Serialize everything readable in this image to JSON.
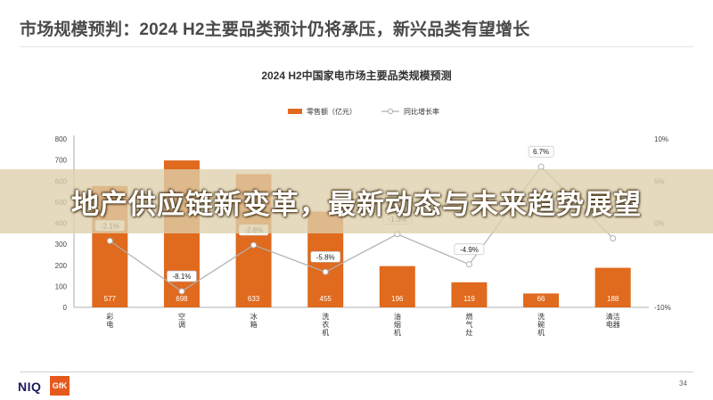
{
  "page_title": "市场规模预判：2024 H2主要品类预计仍将承压，新兴品类有望增长",
  "banner_text": "地产供应链新变革，最新动态与未来趋势展望",
  "footer": {
    "logo_primary": "NIQ",
    "logo_secondary": "GfK",
    "page_number": "34"
  },
  "colors": {
    "bar": "#e06a1e",
    "line": "#b0b0b0",
    "accent": "#e55a1c"
  },
  "chart_data": {
    "type": "bar+line",
    "title": "2024 H2中国家电市场主要品类规模预测",
    "legend": [
      "零售额（亿元）",
      "同比增长率"
    ],
    "legend_position": "top-center",
    "categories": [
      "彩电",
      "空调",
      "冰箱",
      "洗衣机",
      "油烟机",
      "燃气灶",
      "洗碗机",
      "清洁电器"
    ],
    "category_labels": [
      [
        "彩",
        "电"
      ],
      [
        "空",
        "调"
      ],
      [
        "冰",
        "箱"
      ],
      [
        "洗",
        "衣",
        "机"
      ],
      [
        "油",
        "烟",
        "机"
      ],
      [
        "燃",
        "气",
        "灶"
      ],
      [
        "洗",
        "碗",
        "机"
      ],
      [
        "清洁",
        "电器"
      ]
    ],
    "series": [
      {
        "name": "零售额（亿元）",
        "type": "bar",
        "axis": "left",
        "values": [
          577,
          698,
          633,
          455,
          196,
          119,
          66,
          188
        ],
        "value_labels": [
          "577",
          "698",
          "633",
          "455",
          "196",
          "119",
          "66",
          "188"
        ]
      },
      {
        "name": "同比增长率",
        "type": "line",
        "axis": "right",
        "values": [
          -2.1,
          -8.1,
          -2.6,
          -5.8,
          -1.3,
          -4.9,
          6.7,
          -1.8
        ],
        "value_labels": [
          "-2.1%",
          "-8.1%",
          "-2.6%",
          "-5.8%",
          "-1.3%",
          "-4.9%",
          "6.7%",
          ""
        ]
      }
    ],
    "y_left": {
      "min": 0,
      "max": 800,
      "ticks": [
        0,
        100,
        200,
        300,
        400,
        500,
        600,
        700,
        800
      ],
      "tick_labels": [
        "0",
        "100",
        "200",
        "300",
        "400",
        "500",
        "600",
        "700",
        "800"
      ]
    },
    "y_right": {
      "min": -10,
      "max": 10,
      "ticks": [
        -10,
        0,
        5,
        10
      ],
      "tick_labels": [
        "-10%",
        "0%",
        "5%",
        "10%"
      ]
    },
    "grid": false
  }
}
